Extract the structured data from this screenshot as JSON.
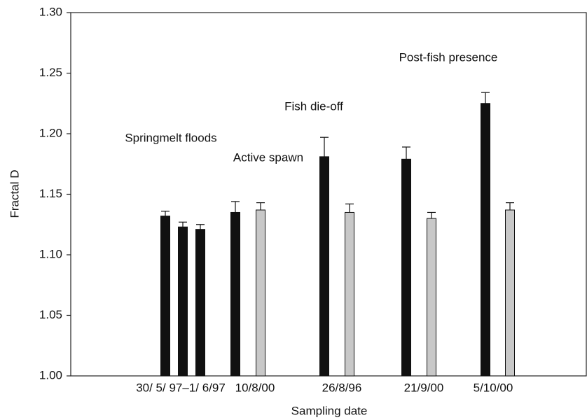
{
  "chart_data": {
    "type": "grouped-bar-errors",
    "x_label": "Sampling date",
    "y_label": "Fractal D",
    "ylim": [
      1.0,
      1.3
    ],
    "yticks": [
      {
        "value": 1.0,
        "label": "1.00"
      },
      1.05,
      {
        "value": 1.1,
        "label": "1.10"
      },
      1.15,
      {
        "value": 1.2,
        "label": "1.20"
      },
      1.25,
      {
        "value": 1.3,
        "label": "1.30"
      }
    ],
    "groups": [
      {
        "label": "30/ 5/ 97–1/ 6/97",
        "annotation": "Springmelt floods",
        "bars": [
          {
            "value": 1.132,
            "error": 0.004,
            "color": "#111111"
          },
          {
            "value": 1.123,
            "error": 0.004,
            "color": "#111111"
          },
          {
            "value": 1.121,
            "error": 0.004,
            "color": "#111111"
          }
        ]
      },
      {
        "label": "10/8/00",
        "annotation": "Active spawn",
        "bars": [
          {
            "value": 1.135,
            "error": 0.009,
            "color": "#111111"
          },
          {
            "value": 1.137,
            "error": 0.006,
            "color": "#c8c8c8"
          }
        ]
      },
      {
        "label": "26/8/96",
        "annotation": "Fish die-off",
        "bars": [
          {
            "value": 1.181,
            "error": 0.016,
            "color": "#111111"
          },
          {
            "value": 1.135,
            "error": 0.007,
            "color": "#c8c8c8"
          }
        ]
      },
      {
        "label": "21/9/00",
        "bars": [
          {
            "value": 1.179,
            "error": 0.01,
            "color": "#111111"
          },
          {
            "value": 1.13,
            "error": 0.005,
            "color": "#c8c8c8"
          }
        ]
      },
      {
        "label": "5/10/00",
        "annotation": "Post-fish presence",
        "bars": [
          {
            "value": 1.225,
            "error": 0.009,
            "color": "#111111"
          },
          {
            "value": 1.137,
            "error": 0.006,
            "color": "#c8c8c8"
          }
        ]
      }
    ]
  }
}
